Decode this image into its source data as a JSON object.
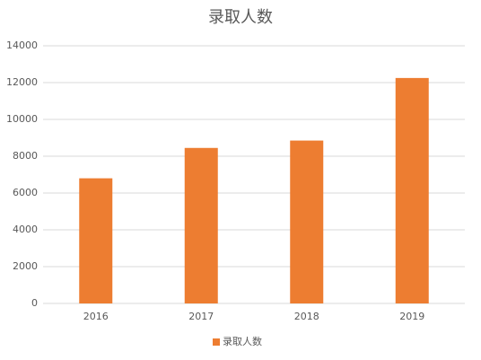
{
  "chart_data": {
    "type": "bar",
    "title": "录取人数",
    "categories": [
      "2016",
      "2017",
      "2018",
      "2019"
    ],
    "series": [
      {
        "name": "录取人数",
        "color": "#ed7d31",
        "values": [
          6800,
          8450,
          8850,
          12250
        ]
      }
    ],
    "ylim": [
      0,
      14000
    ],
    "yticks": [
      0,
      2000,
      4000,
      6000,
      8000,
      10000,
      12000,
      14000
    ],
    "grid": true,
    "legend": "bottom"
  }
}
